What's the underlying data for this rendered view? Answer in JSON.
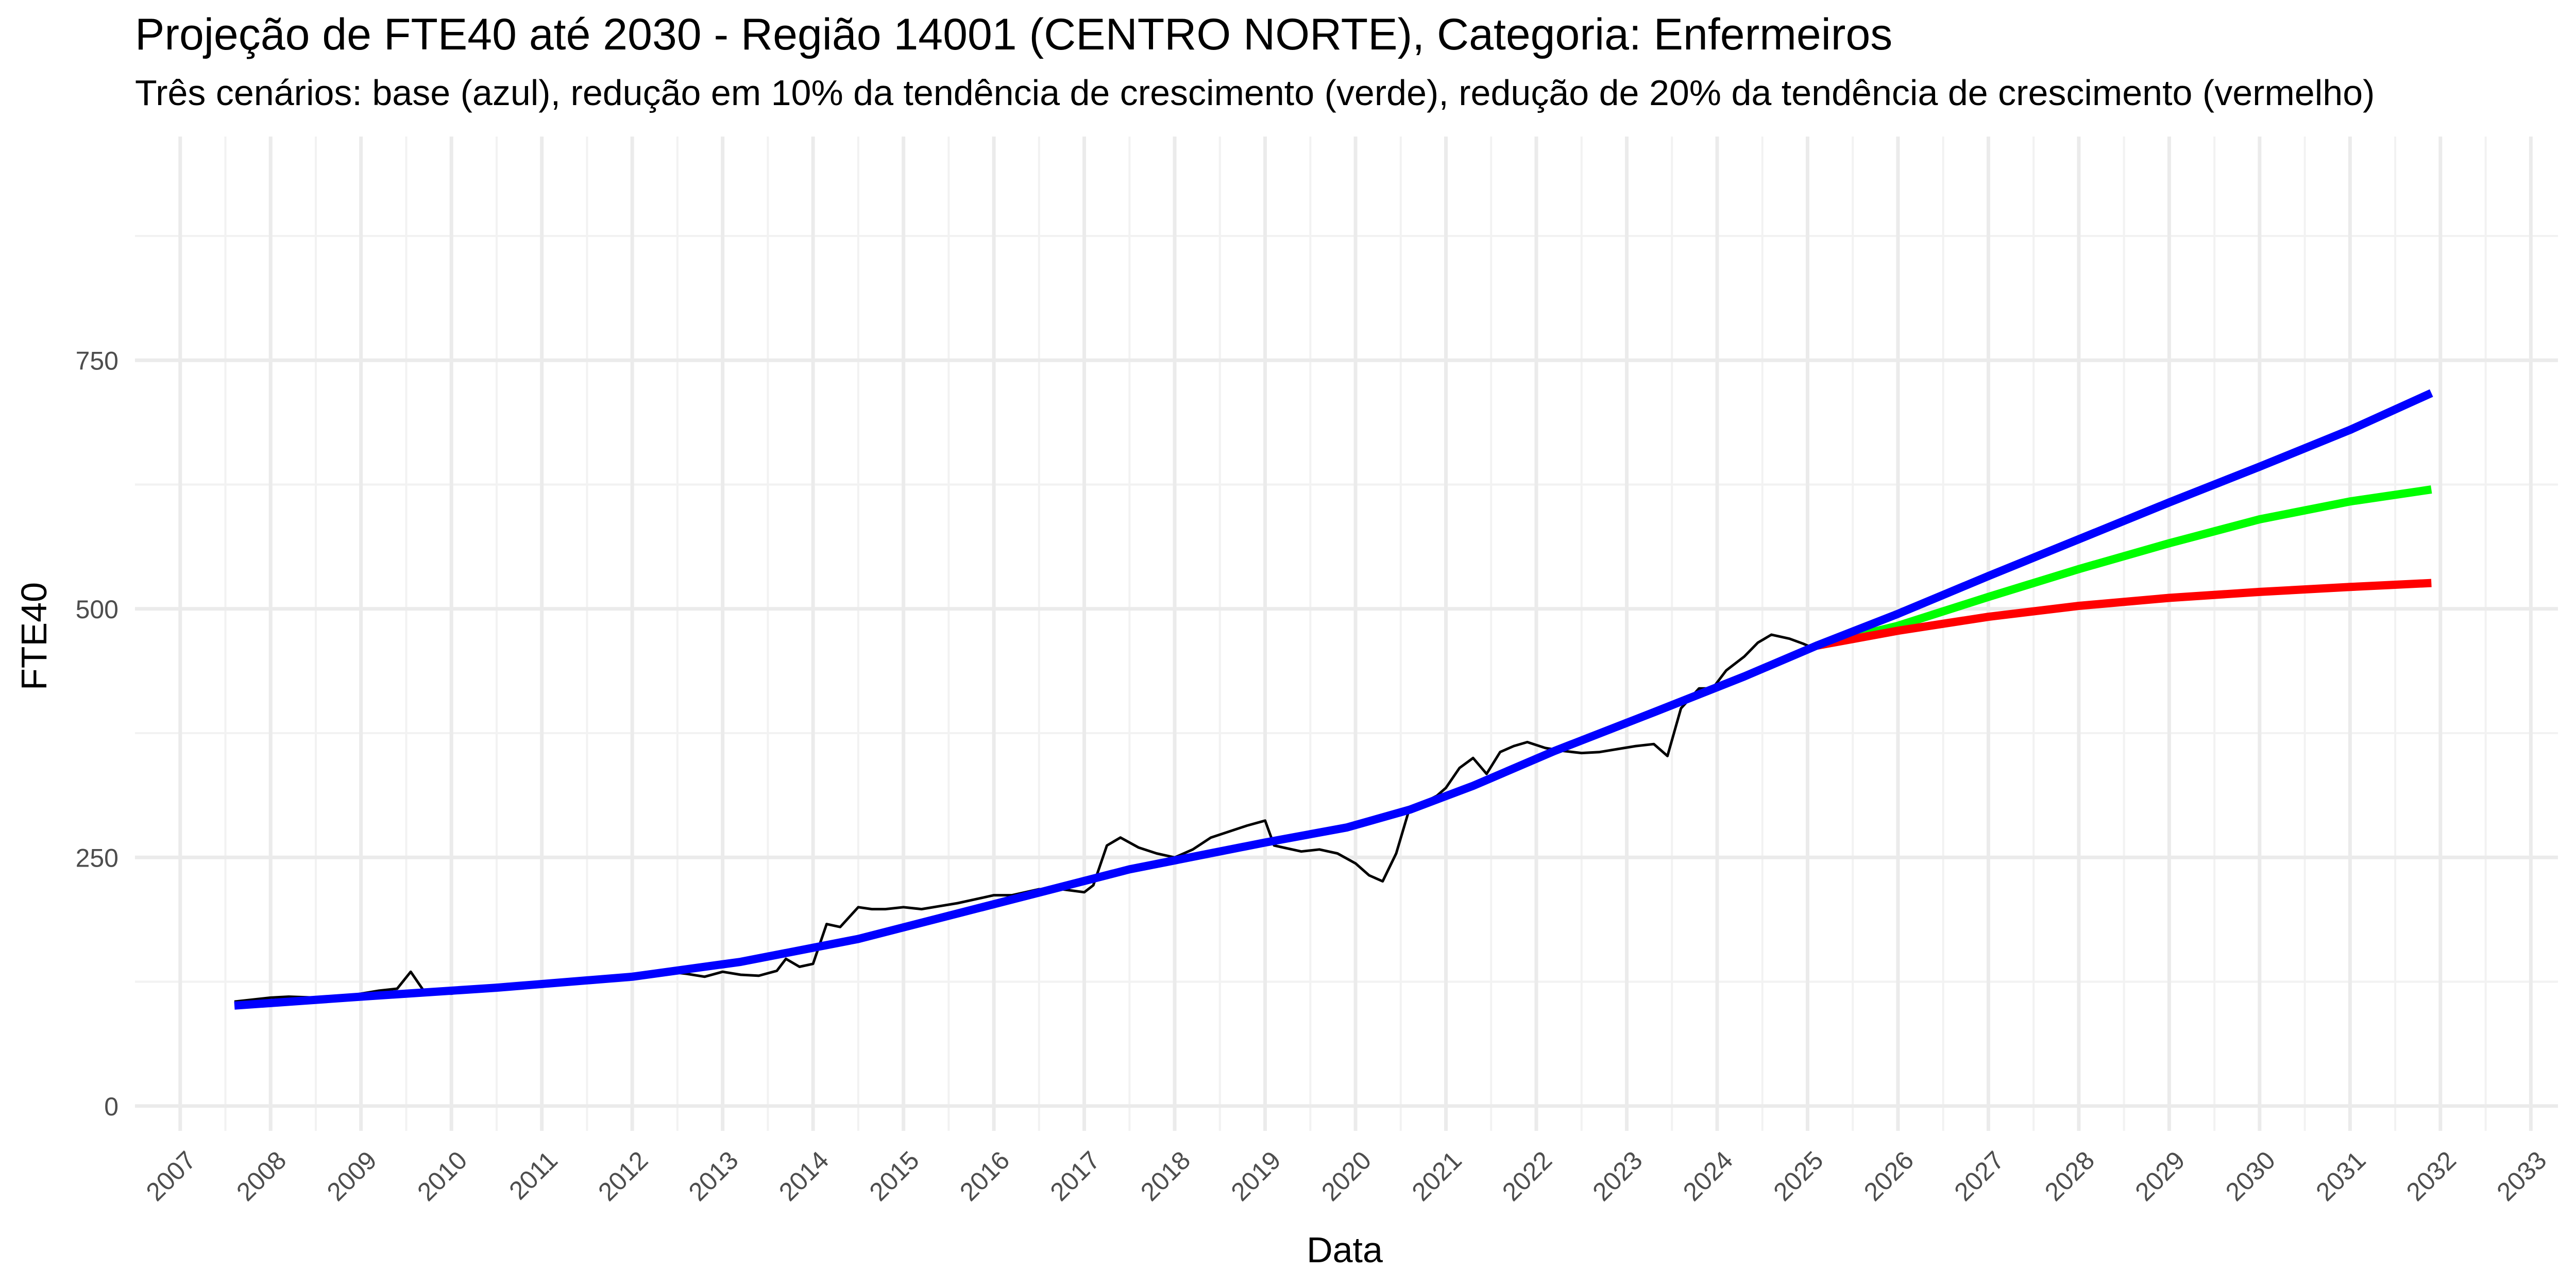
{
  "chart_data": {
    "type": "line",
    "title": "Projeção de FTE40 até 2030 - Região 14001 (CENTRO NORTE), Categoria: Enfermeiros",
    "subtitle": "Três cenários: base (azul), redução em 10% da tendência de crescimento (verde), redução de 20% da tendência de crescimento (vermelho)",
    "xlabel": "Data",
    "ylabel": "FTE40",
    "xlim": [
      2006.5,
      2033.3
    ],
    "ylim": [
      -25,
      975
    ],
    "x_ticks": [
      "2007",
      "2008",
      "2009",
      "2010",
      "2011",
      "2012",
      "2013",
      "2014",
      "2015",
      "2016",
      "2017",
      "2018",
      "2019",
      "2020",
      "2021",
      "2022",
      "2023",
      "2024",
      "2025",
      "2026",
      "2027",
      "2028",
      "2029",
      "2030",
      "2031",
      "2032",
      "2033"
    ],
    "y_ticks": [
      "0",
      "250",
      "500",
      "750"
    ],
    "grid": true,
    "series": [
      {
        "color": "#000000",
        "x": [
          2007.6,
          2007.8,
          2008.0,
          2008.2,
          2008.5,
          2008.8,
          2009.0,
          2009.2,
          2009.4,
          2009.55,
          2009.7,
          2009.85,
          2010.0,
          2010.2,
          2010.5,
          2010.8,
          2011.0,
          2011.3,
          2011.6,
          2011.8,
          2012.0,
          2012.2,
          2012.4,
          2012.6,
          2012.8,
          2013.0,
          2013.2,
          2013.4,
          2013.6,
          2013.7,
          2013.85,
          2014.0,
          2014.15,
          2014.3,
          2014.5,
          2014.65,
          2014.8,
          2015.0,
          2015.2,
          2015.4,
          2015.6,
          2015.8,
          2016.0,
          2016.2,
          2016.5,
          2016.75,
          2017.0,
          2017.1,
          2017.25,
          2017.4,
          2017.6,
          2017.8,
          2018.0,
          2018.2,
          2018.4,
          2018.6,
          2018.8,
          2019.0,
          2019.1,
          2019.2,
          2019.4,
          2019.6,
          2019.8,
          2020.0,
          2020.15,
          2020.3,
          2020.45,
          2020.6,
          2020.75,
          2020.9,
          2021.0,
          2021.15,
          2021.3,
          2021.45,
          2021.6,
          2021.75,
          2021.9,
          2022.1,
          2022.3,
          2022.5,
          2022.7,
          2022.9,
          2023.1,
          2023.3,
          2023.45,
          2023.6,
          2023.8,
          2023.95,
          2024.1,
          2024.3,
          2024.45,
          2024.6,
          2024.8,
          2024.95,
          2025.05
        ],
        "values": [
          105,
          107,
          109,
          110,
          109,
          110,
          113,
          116,
          118,
          135,
          115,
          114,
          113,
          116,
          119,
          121,
          123,
          125,
          126,
          128,
          130,
          133,
          135,
          133,
          130,
          135,
          132,
          131,
          136,
          148,
          140,
          143,
          183,
          180,
          200,
          198,
          198,
          200,
          198,
          201,
          204,
          208,
          212,
          212,
          218,
          218,
          215,
          222,
          262,
          270,
          260,
          254,
          250,
          258,
          270,
          276,
          282,
          287,
          262,
          260,
          256,
          258,
          254,
          244,
          232,
          226,
          254,
          300,
          305,
          312,
          320,
          340,
          350,
          334,
          356,
          362,
          366,
          360,
          357,
          355,
          356,
          359,
          362,
          364,
          352,
          400,
          420,
          420,
          438,
          452,
          466,
          474,
          470,
          465,
          461
        ],
        "name": ""
      },
      {
        "color": "#0000ff",
        "x": [
          2007.6,
          2009.0,
          2010.5,
          2012.0,
          2013.2,
          2014.5,
          2016.0,
          2017.5,
          2019.0,
          2019.9,
          2020.6,
          2021.3,
          2022.2,
          2023.3,
          2024.3,
          2025.1,
          2026.0,
          2027.0,
          2028.0,
          2029.0,
          2030.0,
          2031.0,
          2031.9
        ],
        "values": [
          101,
          110,
          119,
          130,
          145,
          168,
          203,
          238,
          265,
          280,
          298,
          322,
          357,
          396,
          432,
          463,
          495,
          533,
          570,
          607,
          643,
          680,
          717
        ],
        "name": ""
      },
      {
        "color": "#00ff00",
        "x": [
          2025.1,
          2026.0,
          2027.0,
          2028.0,
          2029.0,
          2030.0,
          2031.0,
          2031.9
        ],
        "values": [
          463,
          483,
          512,
          540,
          566,
          590,
          608,
          620
        ],
        "name": ""
      },
      {
        "color": "#ff0000",
        "x": [
          2025.1,
          2026.0,
          2027.0,
          2028.0,
          2029.0,
          2030.0,
          2031.0,
          2031.9
        ],
        "values": [
          463,
          478,
          492,
          503,
          511,
          517,
          522,
          526
        ],
        "name": ""
      }
    ]
  }
}
